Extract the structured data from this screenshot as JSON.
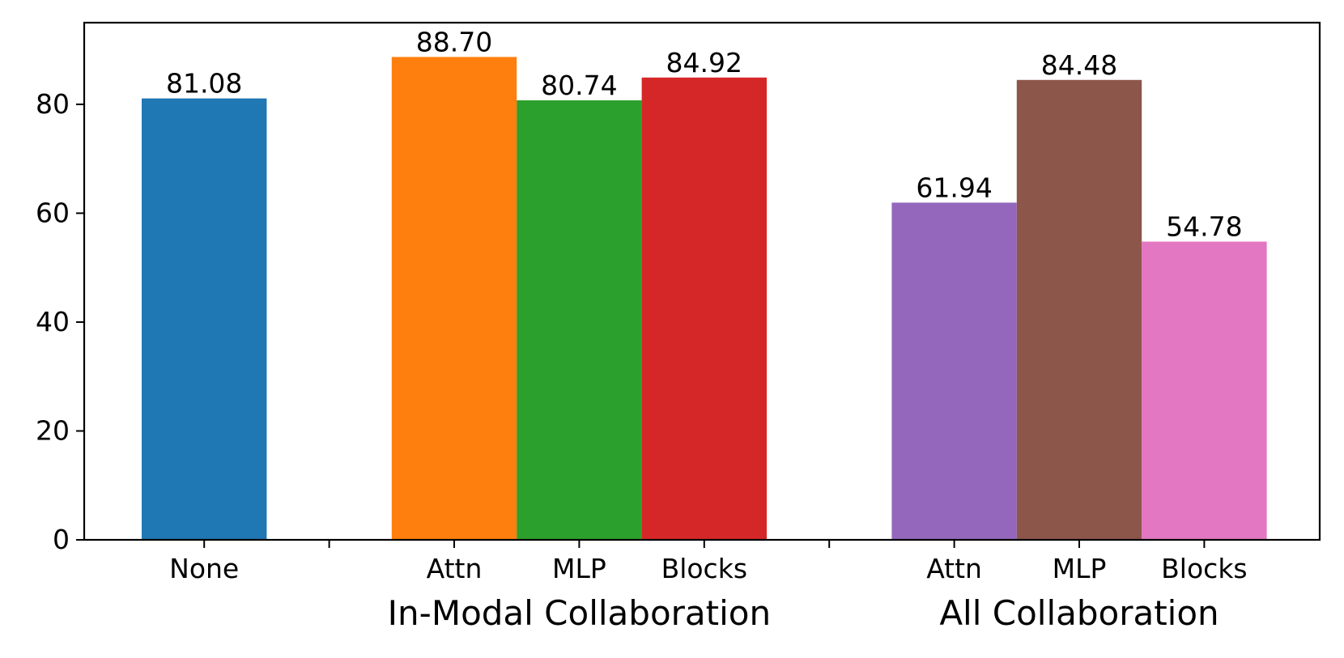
{
  "chart_data": {
    "type": "bar",
    "title": "",
    "xlabel": "",
    "ylabel": "",
    "ylim": [
      0,
      95
    ],
    "yticks": [
      0,
      20,
      40,
      60,
      80
    ],
    "grid": false,
    "legend": "none",
    "groups": [
      {
        "name": "",
        "separator_after": true,
        "bars": [
          {
            "category": "None",
            "value": 81.08,
            "label": "81.08",
            "color": "#1f77b4"
          }
        ]
      },
      {
        "name": "In-Modal Collaboration",
        "separator_after": true,
        "bars": [
          {
            "category": "Attn",
            "value": 88.7,
            "label": "88.70",
            "color": "#ff7f0e"
          },
          {
            "category": "MLP",
            "value": 80.74,
            "label": "80.74",
            "color": "#2ca02c"
          },
          {
            "category": "Blocks",
            "value": 84.92,
            "label": "84.92",
            "color": "#d62728"
          }
        ]
      },
      {
        "name": "All Collaboration",
        "separator_after": false,
        "bars": [
          {
            "category": "Attn",
            "value": 61.94,
            "label": "61.94",
            "color": "#9467bd"
          },
          {
            "category": "MLP",
            "value": 84.48,
            "label": "84.48",
            "color": "#8c564b"
          },
          {
            "category": "Blocks",
            "value": 54.78,
            "label": "54.78",
            "color": "#e377c2"
          }
        ]
      }
    ]
  }
}
